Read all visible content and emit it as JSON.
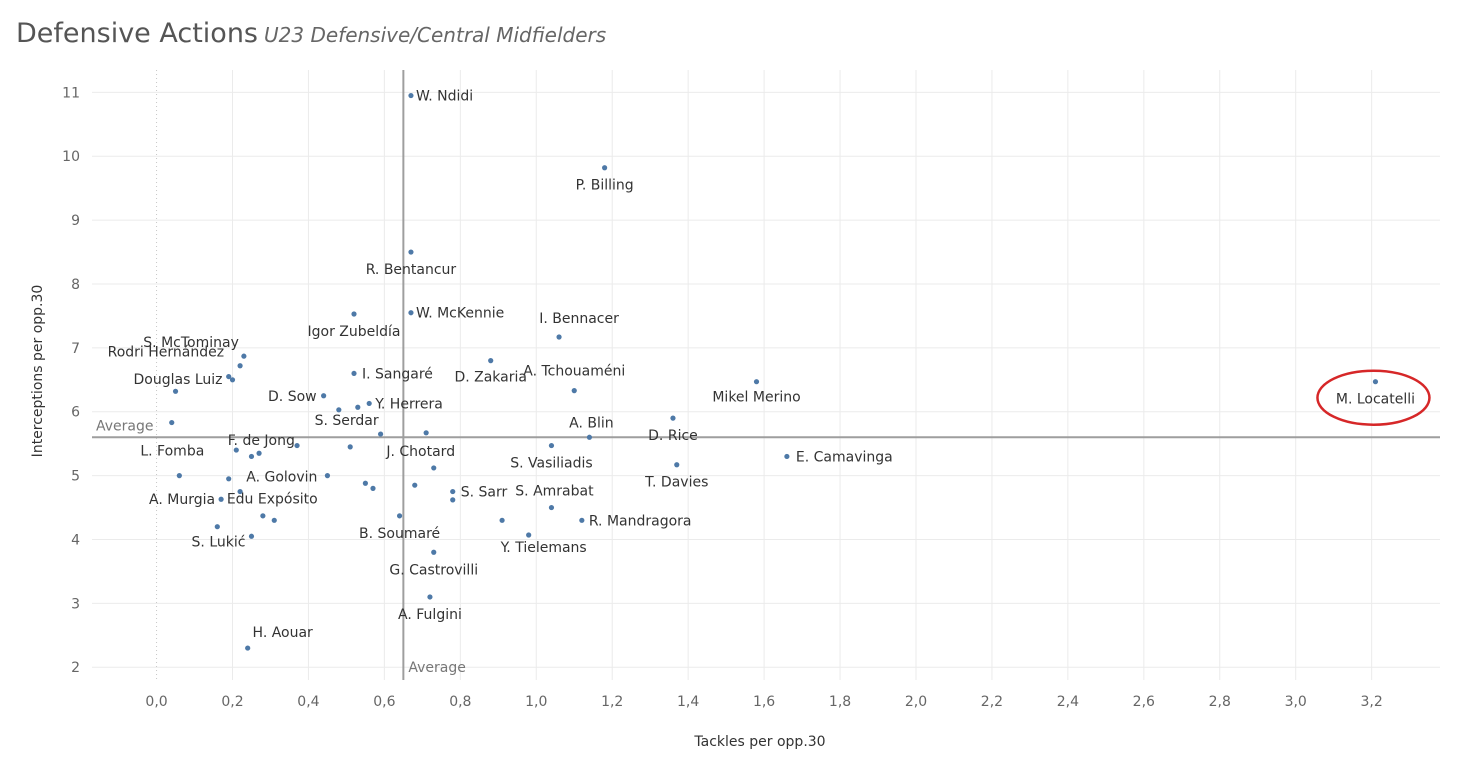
{
  "title": "Defensive Actions",
  "subtitle": "U23 Defensive/Central Midfielders",
  "colors": {
    "point": "#4e79a7",
    "reference_line": "#9e9e9e",
    "highlight_ring": "#d62728",
    "zero_line": "#c8c8c8"
  },
  "chart_data": {
    "type": "scatter",
    "xlabel": "Tackles per opp.30",
    "ylabel": "Interceptions per opp.30",
    "xlim": [
      -0.17,
      3.38
    ],
    "ylim": [
      1.8,
      11.35
    ],
    "xticks": [
      0.0,
      0.2,
      0.4,
      0.6,
      0.8,
      1.0,
      1.2,
      1.4,
      1.6,
      1.8,
      2.0,
      2.2,
      2.4,
      2.6,
      2.8,
      3.0,
      3.2
    ],
    "xtick_labels": [
      "0,0",
      "0,2",
      "0,4",
      "0,6",
      "0,8",
      "1,0",
      "1,2",
      "1,4",
      "1,6",
      "1,8",
      "2,0",
      "2,2",
      "2,4",
      "2,6",
      "2,8",
      "3,0",
      "3,2"
    ],
    "yticks": [
      2,
      3,
      4,
      5,
      6,
      7,
      8,
      9,
      10,
      11
    ],
    "ytick_labels": [
      "2",
      "3",
      "4",
      "5",
      "6",
      "7",
      "8",
      "9",
      "10",
      "11"
    ],
    "grid": true,
    "reference_lines": {
      "x_average": {
        "value": 0.65,
        "label": "Average"
      },
      "y_average": {
        "value": 5.6,
        "label": "Average"
      }
    },
    "highlight": "M. Locatelli",
    "points": [
      {
        "x": 0.67,
        "y": 10.95,
        "label": "W. Ndidi"
      },
      {
        "x": 1.18,
        "y": 9.82,
        "label": "P. Billing"
      },
      {
        "x": 0.67,
        "y": 8.5,
        "label": "R. Bentancur"
      },
      {
        "x": 0.67,
        "y": 7.55,
        "label": "W. McKennie"
      },
      {
        "x": 0.52,
        "y": 7.53,
        "label": "Igor Zubeldía"
      },
      {
        "x": 1.06,
        "y": 7.17,
        "label": "I. Bennacer"
      },
      {
        "x": 0.23,
        "y": 6.87,
        "label": "S. McTominay"
      },
      {
        "x": 0.22,
        "y": 6.72,
        "label": "Rodri Hernández"
      },
      {
        "x": 0.19,
        "y": 6.55,
        "label": ""
      },
      {
        "x": 0.2,
        "y": 6.5,
        "label": "Douglas Luiz"
      },
      {
        "x": 0.05,
        "y": 6.32,
        "label": ""
      },
      {
        "x": 0.88,
        "y": 6.8,
        "label": "D. Zakaria"
      },
      {
        "x": 0.52,
        "y": 6.6,
        "label": "I. Sangaré"
      },
      {
        "x": 1.1,
        "y": 6.33,
        "label": "A. Tchouaméni"
      },
      {
        "x": 1.58,
        "y": 6.47,
        "label": "Mikel Merino"
      },
      {
        "x": 3.21,
        "y": 6.47,
        "label": "M. Locatelli"
      },
      {
        "x": 0.44,
        "y": 6.25,
        "label": "D. Sow"
      },
      {
        "x": 0.48,
        "y": 6.03,
        "label": ""
      },
      {
        "x": 0.53,
        "y": 6.07,
        "label": ""
      },
      {
        "x": 0.56,
        "y": 6.13,
        "label": "Y. Herrera"
      },
      {
        "x": 1.36,
        "y": 5.9,
        "label": "D. Rice"
      },
      {
        "x": 0.04,
        "y": 5.83,
        "label": ""
      },
      {
        "x": 1.14,
        "y": 5.6,
        "label": "A. Blin"
      },
      {
        "x": 0.59,
        "y": 5.65,
        "label": "S. Serdar"
      },
      {
        "x": 0.71,
        "y": 5.67,
        "label": ""
      },
      {
        "x": 0.21,
        "y": 5.4,
        "label": "F. de Jong"
      },
      {
        "x": 0.37,
        "y": 5.47,
        "label": ""
      },
      {
        "x": 0.51,
        "y": 5.45,
        "label": ""
      },
      {
        "x": 1.04,
        "y": 5.47,
        "label": "S. Vasiliadis"
      },
      {
        "x": 0.25,
        "y": 5.3,
        "label": ""
      },
      {
        "x": 0.27,
        "y": 5.35,
        "label": ""
      },
      {
        "x": 1.66,
        "y": 5.3,
        "label": "E. Camavinga"
      },
      {
        "x": 0.73,
        "y": 5.12,
        "label": "J. Chotard"
      },
      {
        "x": 1.37,
        "y": 5.17,
        "label": "T. Davies"
      },
      {
        "x": 0.06,
        "y": 5.0,
        "label": "L. Fomba"
      },
      {
        "x": 0.19,
        "y": 4.95,
        "label": ""
      },
      {
        "x": 0.45,
        "y": 5.0,
        "label": "A. Golovin"
      },
      {
        "x": 0.55,
        "y": 4.88,
        "label": ""
      },
      {
        "x": 0.57,
        "y": 4.8,
        "label": ""
      },
      {
        "x": 0.68,
        "y": 4.85,
        "label": ""
      },
      {
        "x": 0.78,
        "y": 4.75,
        "label": "S. Sarr"
      },
      {
        "x": 0.78,
        "y": 4.62,
        "label": ""
      },
      {
        "x": 0.22,
        "y": 4.75,
        "label": ""
      },
      {
        "x": 0.17,
        "y": 4.63,
        "label": "A. Murgia"
      },
      {
        "x": 1.04,
        "y": 4.5,
        "label": "S. Amrabat"
      },
      {
        "x": 0.28,
        "y": 4.37,
        "label": ""
      },
      {
        "x": 0.31,
        "y": 4.3,
        "label": "Edu Expósito"
      },
      {
        "x": 0.64,
        "y": 4.37,
        "label": "B. Soumaré"
      },
      {
        "x": 0.91,
        "y": 4.3,
        "label": ""
      },
      {
        "x": 1.12,
        "y": 4.3,
        "label": "R. Mandragora"
      },
      {
        "x": 0.16,
        "y": 4.2,
        "label": ""
      },
      {
        "x": 0.25,
        "y": 4.05,
        "label": "S. Lukić"
      },
      {
        "x": 0.98,
        "y": 4.07,
        "label": "Y. Tielemans"
      },
      {
        "x": 0.73,
        "y": 3.8,
        "label": "G. Castrovilli"
      },
      {
        "x": 0.72,
        "y": 3.1,
        "label": "A. Fulgini"
      },
      {
        "x": 0.24,
        "y": 2.3,
        "label": "H. Aouar"
      }
    ]
  }
}
